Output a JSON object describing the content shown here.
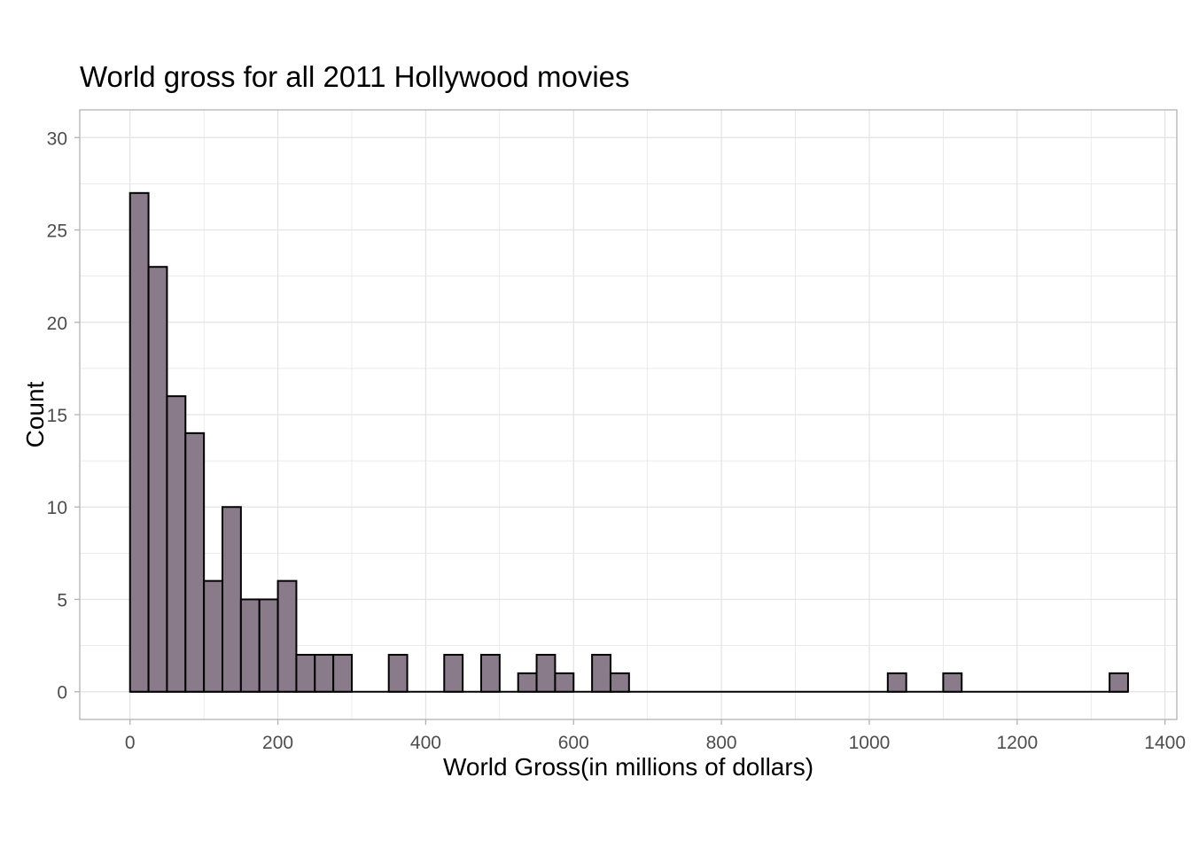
{
  "chart_data": {
    "type": "bar",
    "title": "World gross for all 2011 Hollywood movies",
    "xlabel": "World Gross(in millions of dollars)",
    "ylabel": "Count",
    "xlim": [
      -68,
      1416
    ],
    "ylim": [
      -1.5,
      31.5
    ],
    "xticks": [
      0,
      200,
      400,
      600,
      800,
      1000,
      1200,
      1400
    ],
    "yticks": [
      0,
      5,
      10,
      15,
      20,
      25,
      30
    ],
    "bin_width": 25,
    "bins": [
      {
        "x0": 0,
        "x1": 25,
        "count": 27
      },
      {
        "x0": 25,
        "x1": 50,
        "count": 23
      },
      {
        "x0": 50,
        "x1": 75,
        "count": 16
      },
      {
        "x0": 75,
        "x1": 100,
        "count": 14
      },
      {
        "x0": 100,
        "x1": 125,
        "count": 6
      },
      {
        "x0": 125,
        "x1": 150,
        "count": 10
      },
      {
        "x0": 150,
        "x1": 175,
        "count": 5
      },
      {
        "x0": 175,
        "x1": 200,
        "count": 5
      },
      {
        "x0": 200,
        "x1": 225,
        "count": 6
      },
      {
        "x0": 225,
        "x1": 250,
        "count": 2
      },
      {
        "x0": 250,
        "x1": 275,
        "count": 2
      },
      {
        "x0": 275,
        "x1": 300,
        "count": 2
      },
      {
        "x0": 300,
        "x1": 325,
        "count": 0
      },
      {
        "x0": 325,
        "x1": 350,
        "count": 0
      },
      {
        "x0": 350,
        "x1": 375,
        "count": 2
      },
      {
        "x0": 375,
        "x1": 400,
        "count": 0
      },
      {
        "x0": 400,
        "x1": 425,
        "count": 0
      },
      {
        "x0": 425,
        "x1": 450,
        "count": 2
      },
      {
        "x0": 450,
        "x1": 475,
        "count": 0
      },
      {
        "x0": 475,
        "x1": 500,
        "count": 2
      },
      {
        "x0": 500,
        "x1": 525,
        "count": 0
      },
      {
        "x0": 525,
        "x1": 550,
        "count": 1
      },
      {
        "x0": 550,
        "x1": 575,
        "count": 2
      },
      {
        "x0": 575,
        "x1": 600,
        "count": 1
      },
      {
        "x0": 600,
        "x1": 625,
        "count": 0
      },
      {
        "x0": 625,
        "x1": 650,
        "count": 2
      },
      {
        "x0": 650,
        "x1": 675,
        "count": 1
      },
      {
        "x0": 1025,
        "x1": 1050,
        "count": 1
      },
      {
        "x0": 1100,
        "x1": 1125,
        "count": 1
      },
      {
        "x0": 1325,
        "x1": 1350,
        "count": 1
      }
    ],
    "baseline": [
      0,
      1350
    ],
    "grid": true,
    "legend": "none",
    "colors": {
      "bar_fill": "#8a7b8a",
      "bar_stroke": "#000000",
      "grid": "#e3e3e3",
      "panel_border": "#b3b3b3",
      "tick_text": "#4d4d4d"
    }
  }
}
